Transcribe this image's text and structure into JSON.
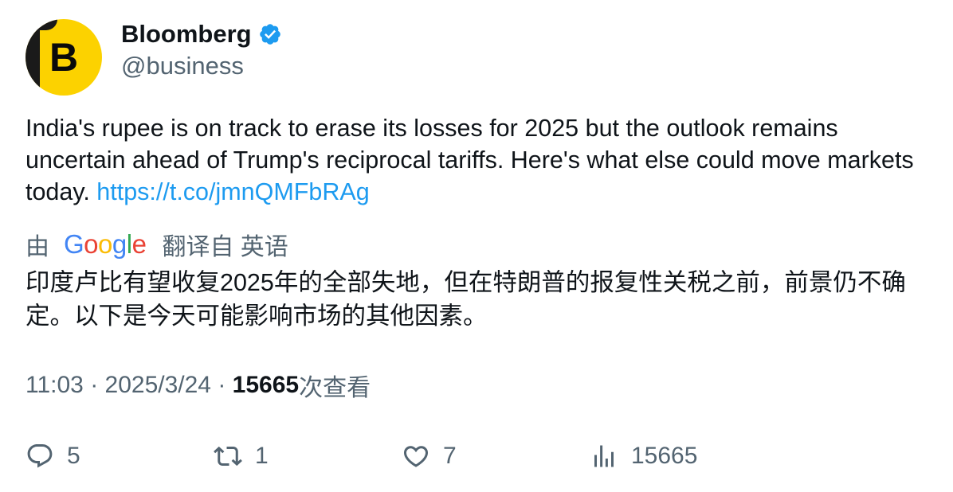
{
  "author": {
    "display_name": "Bloomberg",
    "handle": "@business",
    "verified": true,
    "avatar_letter": "B",
    "avatar_color": "#fcd200"
  },
  "tweet": {
    "text": "India's rupee is on track to erase its losses for 2025 but the outlook remains uncertain ahead of Trump's reciprocal tariffs. Here's what else could move markets today.",
    "link": "https://t.co/jmnQMFbRAg"
  },
  "translation": {
    "prefix": "由",
    "provider": "Google",
    "suffix": "翻译自 英语",
    "text": "印度卢比有望收复2025年的全部失地，但在特朗普的报复性关税之前，前景仍不确定。以下是今天可能影响市场的其他因素。"
  },
  "meta": {
    "time": "11:03",
    "separator": " · ",
    "date": "2025/3/24",
    "views_count": "15665",
    "views_label": "次查看"
  },
  "actions": {
    "replies": "5",
    "retweets": "1",
    "likes": "7",
    "views": "15665"
  },
  "colors": {
    "link": "#1d9bf0",
    "secondary_text": "#536471",
    "primary_text": "#0f1419",
    "verified": "#1d9bf0"
  }
}
